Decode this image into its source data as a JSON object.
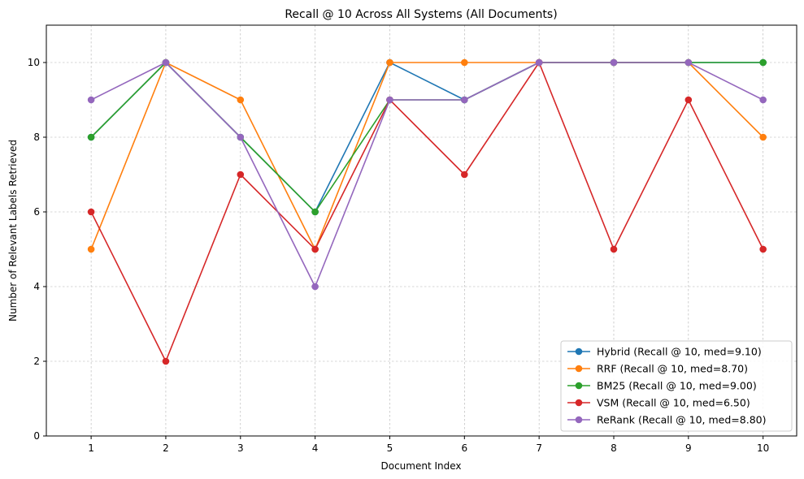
{
  "chart_data": {
    "type": "line",
    "title": "Recall @ 10 Across All Systems (All Documents)",
    "xlabel": "Document Index",
    "ylabel": "Number of Relevant Labels Retrieved",
    "x": [
      1,
      2,
      3,
      4,
      5,
      6,
      7,
      8,
      9,
      10
    ],
    "xlim": [
      0.4,
      10.45
    ],
    "ylim": [
      0,
      11
    ],
    "yticks": [
      0,
      2,
      4,
      6,
      8,
      10
    ],
    "grid": true,
    "legend_position": "lower-right",
    "series": [
      {
        "name": "Hybrid (Recall @ 10, med=9.10)",
        "color": "#1f77b4",
        "values": [
          8,
          10,
          8,
          6,
          10,
          9,
          10,
          10,
          10,
          10
        ]
      },
      {
        "name": "RRF (Recall @ 10, med=8.70)",
        "color": "#ff7f0e",
        "values": [
          5,
          10,
          9,
          5,
          10,
          10,
          10,
          10,
          10,
          8
        ]
      },
      {
        "name": "BM25 (Recall @ 10, med=9.00)",
        "color": "#2ca02c",
        "values": [
          8,
          10,
          8,
          6,
          9,
          9,
          10,
          10,
          10,
          10
        ]
      },
      {
        "name": "VSM (Recall @ 10, med=6.50)",
        "color": "#d62728",
        "values": [
          6,
          2,
          7,
          5,
          9,
          7,
          10,
          5,
          9,
          5
        ]
      },
      {
        "name": "ReRank (Recall @ 10, med=8.80)",
        "color": "#9467bd",
        "values": [
          9,
          10,
          8,
          4,
          9,
          9,
          10,
          10,
          10,
          9
        ]
      }
    ]
  }
}
